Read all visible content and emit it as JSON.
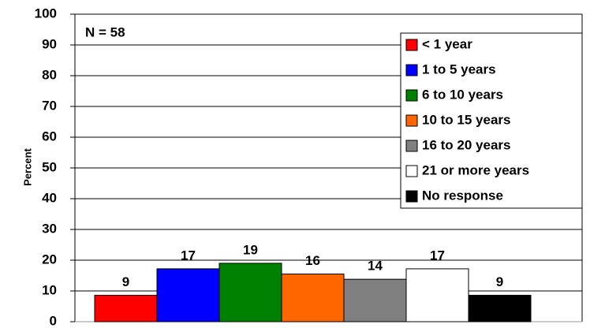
{
  "chart_data": {
    "type": "bar",
    "annotation": "N = 58",
    "ylabel": "Percent",
    "categories": [
      null
    ],
    "series": [
      {
        "name": "< 1 year",
        "color": "#ff0000",
        "values": [
          8.6
        ],
        "value_labels": [
          "9"
        ]
      },
      {
        "name": "1 to 5 years",
        "color": "#0000ff",
        "values": [
          17.2
        ],
        "value_labels": [
          "17"
        ]
      },
      {
        "name": "6 to 10 years",
        "color": "#008000",
        "values": [
          19
        ],
        "value_labels": [
          "19"
        ]
      },
      {
        "name": "10 to 15 years",
        "color": "#ff6600",
        "values": [
          15.5
        ],
        "value_labels": [
          "16"
        ]
      },
      {
        "name": "16 to 20 years",
        "color": "#808080",
        "values": [
          13.8
        ],
        "value_labels": [
          "14"
        ]
      },
      {
        "name": "21 or more years",
        "color": "#ffffff",
        "values": [
          17.2
        ],
        "value_labels": [
          "17"
        ]
      },
      {
        "name": "No response",
        "color": "#000000",
        "values": [
          8.6
        ],
        "value_labels": [
          "9"
        ]
      }
    ],
    "ylim": [
      0,
      100
    ],
    "yticks": [
      0,
      10,
      20,
      30,
      40,
      50,
      60,
      70,
      80,
      90,
      100
    ],
    "grid": true,
    "legend": "upper right"
  }
}
